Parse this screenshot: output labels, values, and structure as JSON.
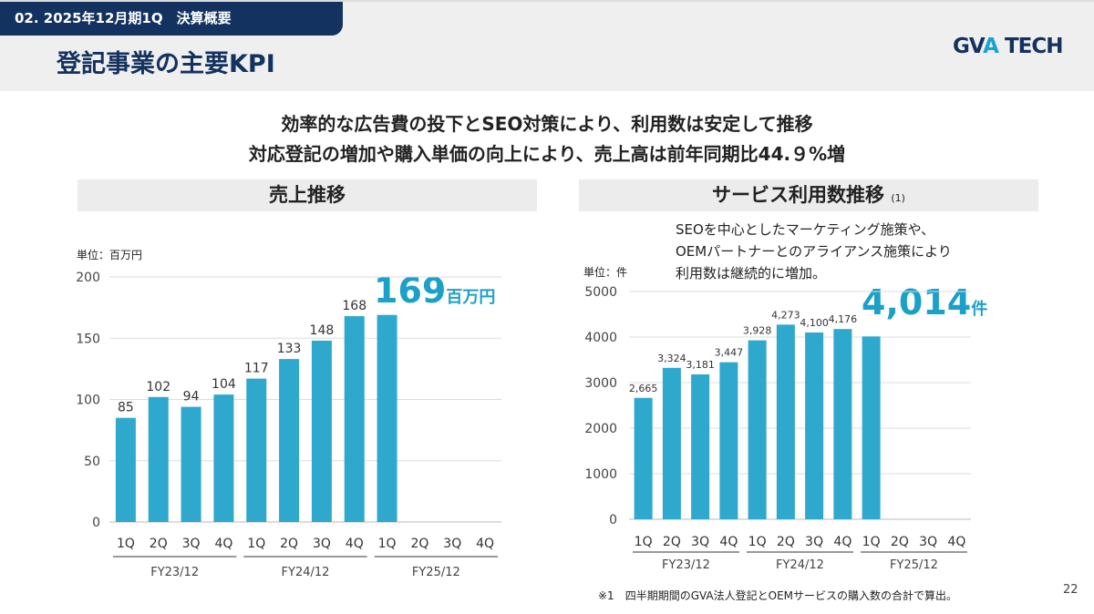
{
  "header": {
    "section": "02. 2025年12月期1Q　決算概要",
    "title": "登記事業の主要KPI",
    "logo_part1": "GV",
    "logo_part2": "A",
    "logo_part3": " TECH"
  },
  "lead": [
    "効率的な広告費の投下とSEO対策により、利用数は安定して推移",
    "対応登記の増加や購入単価の向上により、売上高は前年同期比44.９%増"
  ],
  "colors": {
    "bar": "#2ea8cc",
    "highlight": "#1ba0c8",
    "navy": "#13325f"
  },
  "chart_data": [
    {
      "type": "bar",
      "title": "売上推移",
      "unit_label": "単位：百万円",
      "ylim": [
        0,
        200
      ],
      "yticks": [
        0,
        50,
        100,
        150,
        200
      ],
      "grid": true,
      "categories": [
        "1Q",
        "2Q",
        "3Q",
        "4Q",
        "1Q",
        "2Q",
        "3Q",
        "4Q",
        "1Q",
        "2Q",
        "3Q",
        "4Q"
      ],
      "groups": [
        "FY23/12",
        "FY24/12",
        "FY25/12"
      ],
      "values": [
        85,
        102,
        94,
        104,
        117,
        133,
        148,
        168,
        169,
        null,
        null,
        null
      ],
      "data_labels": [
        "85",
        "102",
        "94",
        "104",
        "117",
        "133",
        "148",
        "168",
        "",
        "",
        "",
        ""
      ],
      "highlight": {
        "value": "169",
        "unit": "百万円"
      }
    },
    {
      "type": "bar",
      "title": "サービス利用数推移",
      "title_note": "(1)",
      "unit_label": "単位：件",
      "ylim": [
        0,
        5000
      ],
      "yticks": [
        0,
        1000,
        2000,
        3000,
        4000,
        5000
      ],
      "grid": true,
      "annotation": [
        "SEOを中心としたマーケティング施策や、",
        "OEMパートナーとのアライアンス施策により",
        "利用数は継続的に増加。"
      ],
      "categories": [
        "1Q",
        "2Q",
        "3Q",
        "4Q",
        "1Q",
        "2Q",
        "3Q",
        "4Q",
        "1Q",
        "2Q",
        "3Q",
        "4Q"
      ],
      "groups": [
        "FY23/12",
        "FY24/12",
        "FY25/12"
      ],
      "values": [
        2665,
        3324,
        3181,
        3447,
        3928,
        4273,
        4100,
        4176,
        4014,
        null,
        null,
        null
      ],
      "data_labels": [
        "2,665",
        "3,324",
        "3,181",
        "3,447",
        "3,928",
        "4,273",
        "4,100",
        "4,176",
        "",
        "",
        "",
        ""
      ],
      "highlight": {
        "value": "4,014",
        "unit": "件"
      }
    }
  ],
  "footnote": "※1　四半期期間のGVA法人登記とOEMサービスの購入数の合計で算出。",
  "page": "22"
}
